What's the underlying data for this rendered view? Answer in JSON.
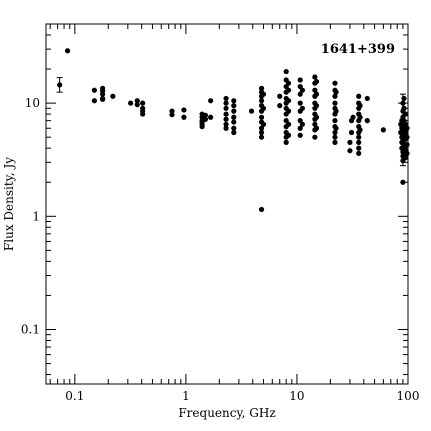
{
  "chart_data": {
    "type": "scatter",
    "title": "",
    "annotation": "1641+399",
    "xlabel": "Frequency, GHz",
    "ylabel": "Flux Density, Jy",
    "x_scale": "log",
    "y_scale": "log",
    "xlim": [
      0.055,
      100
    ],
    "ylim": [
      0.033,
      50
    ],
    "x_ticks": [
      {
        "value": 0.1,
        "label": "0.1"
      },
      {
        "value": 1,
        "label": "1"
      },
      {
        "value": 10,
        "label": "10"
      },
      {
        "value": 100,
        "label": "100"
      }
    ],
    "y_ticks": [
      {
        "value": 0.1,
        "label": "0.1"
      },
      {
        "value": 1,
        "label": "1"
      },
      {
        "value": 10,
        "label": "10"
      }
    ],
    "grid": false,
    "legend": "none",
    "marker_color": "#000000",
    "points": [
      [
        0.073,
        14.5
      ],
      [
        0.086,
        29.0
      ],
      [
        0.15,
        13.0
      ],
      [
        0.15,
        10.5
      ],
      [
        0.178,
        13.5
      ],
      [
        0.178,
        12.8
      ],
      [
        0.178,
        12.0
      ],
      [
        0.178,
        11.0
      ],
      [
        0.178,
        10.8
      ],
      [
        0.22,
        11.5
      ],
      [
        0.318,
        10.0
      ],
      [
        0.365,
        10.5
      ],
      [
        0.365,
        9.7
      ],
      [
        0.408,
        10.0
      ],
      [
        0.408,
        9.0
      ],
      [
        0.408,
        8.5
      ],
      [
        0.408,
        8.0
      ],
      [
        0.75,
        8.5
      ],
      [
        0.75,
        7.9
      ],
      [
        0.96,
        8.7
      ],
      [
        0.96,
        7.5
      ],
      [
        1.4,
        8.0
      ],
      [
        1.4,
        7.5
      ],
      [
        1.4,
        7.0
      ],
      [
        1.4,
        6.8
      ],
      [
        1.4,
        6.5
      ],
      [
        1.4,
        6.2
      ],
      [
        1.5,
        7.8
      ],
      [
        1.5,
        7.2
      ],
      [
        1.67,
        7.5
      ],
      [
        1.67,
        10.5
      ],
      [
        2.3,
        11.0
      ],
      [
        2.3,
        10.0
      ],
      [
        2.3,
        9.0
      ],
      [
        2.3,
        8.0
      ],
      [
        2.3,
        7.2
      ],
      [
        2.3,
        6.5
      ],
      [
        2.3,
        6.0
      ],
      [
        2.7,
        10.5
      ],
      [
        2.7,
        9.5
      ],
      [
        2.7,
        8.5
      ],
      [
        2.7,
        7.5
      ],
      [
        2.7,
        6.8
      ],
      [
        2.7,
        6.0
      ],
      [
        2.7,
        5.5
      ],
      [
        3.9,
        8.5
      ],
      [
        4.8,
        13.5
      ],
      [
        4.8,
        12.5
      ],
      [
        4.8,
        11.5
      ],
      [
        4.8,
        10.5
      ],
      [
        4.8,
        9.5
      ],
      [
        4.8,
        8.5
      ],
      [
        4.8,
        7.5
      ],
      [
        4.8,
        6.8
      ],
      [
        4.8,
        6.0
      ],
      [
        4.8,
        5.5
      ],
      [
        4.8,
        5.0
      ],
      [
        4.8,
        1.15
      ],
      [
        5.0,
        12.0
      ],
      [
        5.0,
        9.0
      ],
      [
        5.0,
        6.5
      ],
      [
        7.0,
        11.5
      ],
      [
        7.0,
        9.5
      ],
      [
        8.0,
        19.0
      ],
      [
        8.0,
        16.0
      ],
      [
        8.0,
        14.0
      ],
      [
        8.0,
        12.5
      ],
      [
        8.0,
        11.0
      ],
      [
        8.0,
        10.0
      ],
      [
        8.0,
        9.0
      ],
      [
        8.0,
        8.0
      ],
      [
        8.0,
        7.0
      ],
      [
        8.0,
        6.2
      ],
      [
        8.0,
        5.5
      ],
      [
        8.0,
        5.0
      ],
      [
        8.0,
        4.5
      ],
      [
        8.4,
        15.0
      ],
      [
        8.4,
        13.0
      ],
      [
        8.4,
        10.5
      ],
      [
        8.4,
        8.5
      ],
      [
        8.4,
        6.5
      ],
      [
        8.4,
        5.2
      ],
      [
        10.7,
        16.0
      ],
      [
        10.7,
        14.0
      ],
      [
        10.7,
        12.0
      ],
      [
        10.7,
        10.0
      ],
      [
        10.7,
        8.5
      ],
      [
        10.7,
        7.0
      ],
      [
        10.7,
        6.0
      ],
      [
        10.7,
        5.2
      ],
      [
        11.2,
        13.0
      ],
      [
        11.2,
        9.0
      ],
      [
        11.2,
        6.5
      ],
      [
        14.5,
        17.0
      ],
      [
        14.5,
        15.0
      ],
      [
        14.5,
        13.0
      ],
      [
        14.5,
        11.5
      ],
      [
        14.5,
        10.0
      ],
      [
        14.5,
        9.0
      ],
      [
        14.5,
        8.0
      ],
      [
        14.5,
        7.2
      ],
      [
        14.5,
        6.5
      ],
      [
        14.5,
        5.8
      ],
      [
        14.5,
        5.0
      ],
      [
        15.0,
        15.5
      ],
      [
        15.0,
        12.0
      ],
      [
        15.0,
        9.5
      ],
      [
        15.0,
        7.5
      ],
      [
        15.0,
        6.0
      ],
      [
        22.0,
        15.0
      ],
      [
        22.0,
        13.0
      ],
      [
        22.0,
        11.5
      ],
      [
        22.0,
        10.0
      ],
      [
        22.0,
        9.0
      ],
      [
        22.0,
        8.0
      ],
      [
        22.0,
        7.0
      ],
      [
        22.0,
        6.2
      ],
      [
        22.0,
        5.5
      ],
      [
        22.0,
        5.0
      ],
      [
        22.0,
        4.5
      ],
      [
        22.5,
        12.5
      ],
      [
        22.5,
        8.5
      ],
      [
        22.5,
        6.0
      ],
      [
        30.0,
        4.5
      ],
      [
        30.0,
        3.8
      ],
      [
        31.0,
        5.5
      ],
      [
        31.0,
        7.0
      ],
      [
        32.0,
        7.5
      ],
      [
        36.0,
        11.5
      ],
      [
        36.0,
        10.0
      ],
      [
        36.0,
        9.0
      ],
      [
        36.0,
        8.0
      ],
      [
        36.0,
        7.0
      ],
      [
        36.0,
        6.2
      ],
      [
        36.0,
        5.5
      ],
      [
        36.0,
        5.0
      ],
      [
        36.0,
        4.5
      ],
      [
        36.0,
        4.0
      ],
      [
        36.0,
        3.6
      ],
      [
        37.0,
        9.5
      ],
      [
        37.0,
        7.5
      ],
      [
        37.0,
        5.8
      ],
      [
        43.0,
        11.0
      ],
      [
        43.0,
        7.0
      ],
      [
        60.0,
        5.8
      ],
      [
        86.0,
        6.5
      ],
      [
        86.0,
        5.5
      ],
      [
        88.0,
        7.0
      ],
      [
        88.0,
        6.0
      ],
      [
        88.0,
        5.0
      ],
      [
        88.0,
        4.5
      ],
      [
        88.0,
        4.0
      ],
      [
        90.0,
        10.0
      ],
      [
        90.0,
        8.5
      ],
      [
        90.0,
        7.5
      ],
      [
        90.0,
        6.5
      ],
      [
        90.0,
        5.8
      ],
      [
        90.0,
        5.2
      ],
      [
        90.0,
        4.8
      ],
      [
        90.0,
        4.4
      ],
      [
        90.0,
        4.0
      ],
      [
        90.0,
        3.7
      ],
      [
        90.0,
        3.4
      ],
      [
        90.0,
        3.1
      ],
      [
        90.0,
        2.0
      ],
      [
        92.0,
        11.0
      ],
      [
        92.0,
        9.0
      ],
      [
        92.0,
        7.0
      ],
      [
        92.0,
        6.0
      ],
      [
        92.0,
        5.3
      ],
      [
        92.0,
        4.7
      ],
      [
        92.0,
        4.2
      ],
      [
        92.0,
        3.8
      ],
      [
        95.0,
        8.0
      ],
      [
        95.0,
        6.5
      ],
      [
        95.0,
        5.5
      ],
      [
        95.0,
        4.8
      ],
      [
        95.0,
        4.2
      ],
      [
        95.0,
        3.8
      ],
      [
        95.0,
        3.3
      ],
      [
        98.0,
        6.0
      ],
      [
        98.0,
        5.0
      ],
      [
        98.0,
        4.3
      ],
      [
        98.0,
        3.6
      ]
    ],
    "error_bars": [
      {
        "x": 0.073,
        "y": 14.5,
        "low": 12.5,
        "high": 16.8
      },
      {
        "x": 90.0,
        "y": 7.0,
        "low": 2.8,
        "high": 12.0
      }
    ]
  }
}
